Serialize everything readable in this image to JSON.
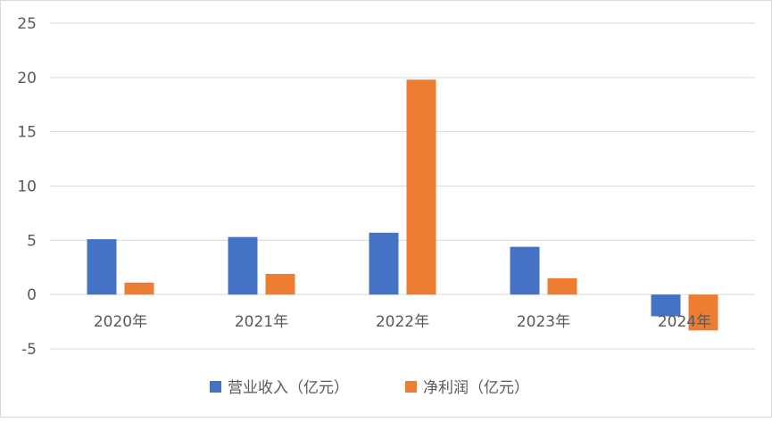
{
  "chart_data": {
    "type": "bar",
    "categories": [
      "2020年",
      "2021年",
      "2022年",
      "2023年",
      "2024年"
    ],
    "series": [
      {
        "name": "营业收入（亿元）",
        "color": "#4472c4",
        "values": [
          5.1,
          5.3,
          5.7,
          4.4,
          -2.0
        ]
      },
      {
        "name": "净利润（亿元）",
        "color": "#ed7d31",
        "values": [
          1.1,
          1.9,
          19.8,
          1.5,
          -3.3
        ]
      }
    ],
    "yticks": [
      "-5",
      "0",
      "5",
      "10",
      "15",
      "20",
      "25"
    ],
    "ylim": [
      -5,
      25
    ],
    "grid": true,
    "legend_position": "bottom"
  }
}
